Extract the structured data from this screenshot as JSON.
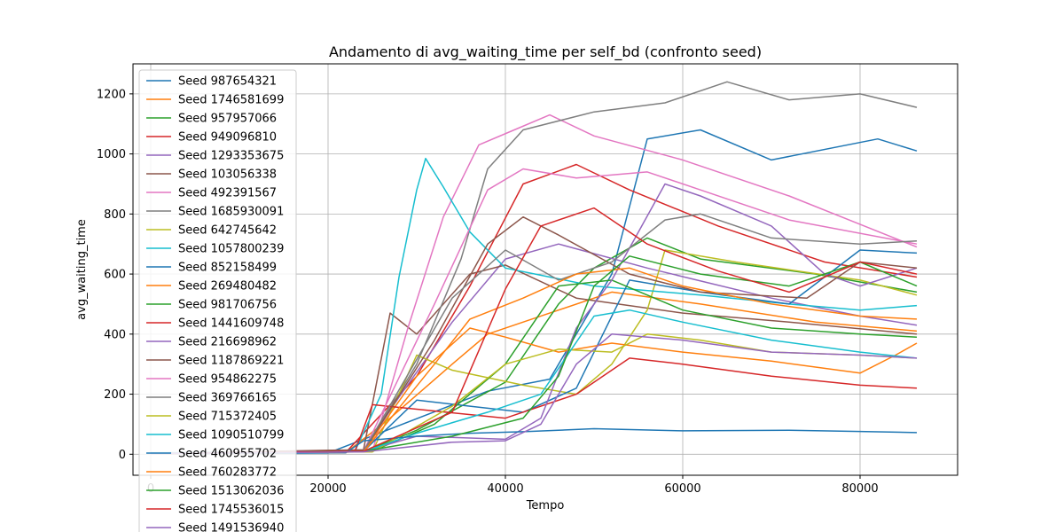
{
  "chart_data": {
    "type": "line",
    "title": "Andamento di avg_waiting_time per self_bd (confronto seed)",
    "xlabel": "Tempo",
    "ylabel": "avg_waiting_time",
    "xlim": [
      -2000,
      91000
    ],
    "ylim": [
      -70,
      1300
    ],
    "xticks": [
      0,
      20000,
      40000,
      60000,
      80000
    ],
    "yticks": [
      0,
      200,
      400,
      600,
      800,
      1000,
      1200
    ],
    "grid": true,
    "legend_position": "upper-left",
    "series": [
      {
        "name": "Seed 987654321",
        "color": "#1f77b4",
        "points": [
          [
            0,
            2
          ],
          [
            20000,
            4
          ],
          [
            38000,
            210
          ],
          [
            45000,
            250
          ],
          [
            52000,
            600
          ],
          [
            56000,
            1050
          ],
          [
            62000,
            1080
          ],
          [
            70000,
            980
          ],
          [
            82000,
            1050
          ],
          [
            86400,
            1010
          ]
        ]
      },
      {
        "name": "Seed 1746581699",
        "color": "#ff7f0e",
        "points": [
          [
            0,
            3
          ],
          [
            22000,
            5
          ],
          [
            27000,
            120
          ],
          [
            34000,
            300
          ],
          [
            38000,
            400
          ],
          [
            45000,
            470
          ],
          [
            52000,
            540
          ],
          [
            62000,
            500
          ],
          [
            75000,
            440
          ],
          [
            86400,
            410
          ]
        ]
      },
      {
        "name": "Seed 957957066",
        "color": "#2ca02c",
        "points": [
          [
            0,
            2
          ],
          [
            24000,
            8
          ],
          [
            30000,
            80
          ],
          [
            40000,
            240
          ],
          [
            46000,
            500
          ],
          [
            50000,
            620
          ],
          [
            56000,
            720
          ],
          [
            62000,
            650
          ],
          [
            75000,
            600
          ],
          [
            86400,
            540
          ]
        ]
      },
      {
        "name": "Seed 949096810",
        "color": "#d62728",
        "points": [
          [
            0,
            2
          ],
          [
            22000,
            6
          ],
          [
            30000,
            260
          ],
          [
            36000,
            560
          ],
          [
            42000,
            900
          ],
          [
            48000,
            965
          ],
          [
            54000,
            880
          ],
          [
            64000,
            760
          ],
          [
            76000,
            640
          ],
          [
            86400,
            590
          ]
        ]
      },
      {
        "name": "Seed 1293353675",
        "color": "#9467bd",
        "points": [
          [
            0,
            3
          ],
          [
            24000,
            12
          ],
          [
            28000,
            190
          ],
          [
            34000,
            440
          ],
          [
            40000,
            650
          ],
          [
            46000,
            700
          ],
          [
            56000,
            620
          ],
          [
            70000,
            520
          ],
          [
            80000,
            460
          ],
          [
            86400,
            430
          ]
        ]
      },
      {
        "name": "Seed 103056338",
        "color": "#8c564b",
        "points": [
          [
            0,
            3
          ],
          [
            24000,
            15
          ],
          [
            27000,
            470
          ],
          [
            30000,
            400
          ],
          [
            36000,
            600
          ],
          [
            40000,
            630
          ],
          [
            48000,
            520
          ],
          [
            60000,
            470
          ],
          [
            72000,
            440
          ],
          [
            86400,
            400
          ]
        ]
      },
      {
        "name": "Seed 492391567",
        "color": "#e377c2",
        "points": [
          [
            0,
            4
          ],
          [
            25000,
            10
          ],
          [
            29000,
            420
          ],
          [
            33000,
            790
          ],
          [
            37000,
            1030
          ],
          [
            41000,
            1080
          ],
          [
            45000,
            1130
          ],
          [
            50000,
            1060
          ],
          [
            60000,
            980
          ],
          [
            72000,
            860
          ],
          [
            86400,
            690
          ]
        ]
      },
      {
        "name": "Seed 1685930091",
        "color": "#7f7f7f",
        "points": [
          [
            0,
            3
          ],
          [
            24000,
            8
          ],
          [
            30000,
            300
          ],
          [
            35000,
            650
          ],
          [
            38000,
            950
          ],
          [
            42000,
            1080
          ],
          [
            50000,
            1140
          ],
          [
            58000,
            1170
          ],
          [
            65000,
            1240
          ],
          [
            72000,
            1180
          ],
          [
            80000,
            1200
          ],
          [
            86400,
            1155
          ]
        ]
      },
      {
        "name": "Seed 642745642",
        "color": "#bcbd22",
        "points": [
          [
            0,
            2
          ],
          [
            25000,
            8
          ],
          [
            30000,
            330
          ],
          [
            34000,
            280
          ],
          [
            42000,
            230
          ],
          [
            48000,
            200
          ],
          [
            52000,
            300
          ],
          [
            56000,
            480
          ],
          [
            58000,
            680
          ],
          [
            66000,
            640
          ],
          [
            80000,
            580
          ],
          [
            86400,
            530
          ]
        ]
      },
      {
        "name": "Seed 1057800239",
        "color": "#17becf",
        "points": [
          [
            0,
            5
          ],
          [
            23000,
            8
          ],
          [
            26000,
            200
          ],
          [
            28000,
            590
          ],
          [
            30000,
            880
          ],
          [
            31000,
            985
          ],
          [
            33000,
            890
          ],
          [
            36000,
            740
          ],
          [
            40000,
            620
          ],
          [
            50000,
            560
          ],
          [
            62000,
            530
          ],
          [
            72000,
            500
          ],
          [
            80000,
            480
          ],
          [
            86400,
            495
          ]
        ]
      },
      {
        "name": "Seed 852158499",
        "color": "#1f77b4",
        "points": [
          [
            0,
            2
          ],
          [
            24000,
            10
          ],
          [
            30000,
            180
          ],
          [
            36000,
            160
          ],
          [
            42000,
            140
          ],
          [
            48000,
            220
          ],
          [
            54000,
            580
          ],
          [
            62000,
            540
          ],
          [
            72000,
            500
          ],
          [
            80000,
            680
          ],
          [
            86400,
            670
          ]
        ]
      },
      {
        "name": "Seed 269480482",
        "color": "#ff7f0e",
        "points": [
          [
            0,
            2
          ],
          [
            24000,
            10
          ],
          [
            30000,
            260
          ],
          [
            36000,
            420
          ],
          [
            40000,
            390
          ],
          [
            46000,
            340
          ],
          [
            52000,
            370
          ],
          [
            60000,
            340
          ],
          [
            70000,
            310
          ],
          [
            80000,
            270
          ],
          [
            84000,
            330
          ],
          [
            86400,
            370
          ]
        ]
      },
      {
        "name": "Seed 981706756",
        "color": "#2ca02c",
        "points": [
          [
            0,
            2
          ],
          [
            25000,
            10
          ],
          [
            32000,
            100
          ],
          [
            40000,
            300
          ],
          [
            46000,
            560
          ],
          [
            52000,
            580
          ],
          [
            60000,
            480
          ],
          [
            70000,
            420
          ],
          [
            80000,
            400
          ],
          [
            86400,
            390
          ]
        ]
      },
      {
        "name": "Seed 1441609748",
        "color": "#d62728",
        "points": [
          [
            0,
            2
          ],
          [
            23000,
            8
          ],
          [
            25000,
            165
          ],
          [
            30000,
            150
          ],
          [
            40000,
            120
          ],
          [
            48000,
            200
          ],
          [
            54000,
            320
          ],
          [
            60000,
            300
          ],
          [
            70000,
            260
          ],
          [
            80000,
            230
          ],
          [
            86400,
            220
          ]
        ]
      },
      {
        "name": "Seed 216698962",
        "color": "#9467bd",
        "points": [
          [
            0,
            3
          ],
          [
            24000,
            10
          ],
          [
            30000,
            60
          ],
          [
            40000,
            50
          ],
          [
            44000,
            120
          ],
          [
            48000,
            420
          ],
          [
            52000,
            580
          ],
          [
            58000,
            900
          ],
          [
            62000,
            860
          ],
          [
            70000,
            760
          ],
          [
            76000,
            600
          ],
          [
            80000,
            560
          ],
          [
            86400,
            620
          ]
        ]
      },
      {
        "name": "Seed 1187869221",
        "color": "#8c564b",
        "points": [
          [
            0,
            2
          ],
          [
            24000,
            10
          ],
          [
            32000,
            380
          ],
          [
            38000,
            700
          ],
          [
            42000,
            790
          ],
          [
            46000,
            730
          ],
          [
            54000,
            600
          ],
          [
            62000,
            540
          ],
          [
            74000,
            520
          ],
          [
            80000,
            640
          ],
          [
            86400,
            620
          ]
        ]
      },
      {
        "name": "Seed 954862275",
        "color": "#e377c2",
        "points": [
          [
            0,
            2
          ],
          [
            24000,
            10
          ],
          [
            32000,
            500
          ],
          [
            38000,
            880
          ],
          [
            42000,
            950
          ],
          [
            48000,
            920
          ],
          [
            56000,
            940
          ],
          [
            62000,
            880
          ],
          [
            72000,
            780
          ],
          [
            86400,
            700
          ]
        ]
      },
      {
        "name": "Seed 369766165",
        "color": "#7f7f7f",
        "points": [
          [
            0,
            2
          ],
          [
            24000,
            10
          ],
          [
            34000,
            520
          ],
          [
            40000,
            680
          ],
          [
            46000,
            580
          ],
          [
            52000,
            640
          ],
          [
            58000,
            780
          ],
          [
            62000,
            800
          ],
          [
            70000,
            720
          ],
          [
            80000,
            700
          ],
          [
            86400,
            710
          ]
        ]
      },
      {
        "name": "Seed 715372405",
        "color": "#bcbd22",
        "points": [
          [
            0,
            2
          ],
          [
            25000,
            8
          ],
          [
            34000,
            160
          ],
          [
            40000,
            300
          ],
          [
            46000,
            350
          ],
          [
            52000,
            340
          ],
          [
            56000,
            400
          ],
          [
            62000,
            380
          ],
          [
            70000,
            340
          ],
          [
            80000,
            330
          ],
          [
            86400,
            320
          ]
        ]
      },
      {
        "name": "Seed 1090510799",
        "color": "#17becf",
        "points": [
          [
            0,
            3
          ],
          [
            24000,
            8
          ],
          [
            30000,
            70
          ],
          [
            38000,
            140
          ],
          [
            44000,
            200
          ],
          [
            50000,
            460
          ],
          [
            54000,
            480
          ],
          [
            60000,
            440
          ],
          [
            70000,
            380
          ],
          [
            80000,
            340
          ],
          [
            86400,
            320
          ]
        ]
      },
      {
        "name": "Seed 460955702",
        "color": "#1f77b4",
        "points": [
          [
            0,
            2
          ],
          [
            22000,
            5
          ],
          [
            24000,
            45
          ],
          [
            30000,
            60
          ],
          [
            36000,
            70
          ],
          [
            42000,
            75
          ],
          [
            50000,
            85
          ],
          [
            60000,
            78
          ],
          [
            72000,
            80
          ],
          [
            80000,
            76
          ],
          [
            86400,
            72
          ]
        ]
      },
      {
        "name": "Seed 760283772",
        "color": "#ff7f0e",
        "points": [
          [
            0,
            2
          ],
          [
            24000,
            8
          ],
          [
            32000,
            300
          ],
          [
            36000,
            450
          ],
          [
            42000,
            520
          ],
          [
            48000,
            600
          ],
          [
            54000,
            620
          ],
          [
            60000,
            560
          ],
          [
            70000,
            500
          ],
          [
            80000,
            460
          ],
          [
            86400,
            450
          ]
        ]
      },
      {
        "name": "Seed 1513062036",
        "color": "#2ca02c",
        "points": [
          [
            0,
            2
          ],
          [
            24000,
            10
          ],
          [
            34000,
            60
          ],
          [
            42000,
            120
          ],
          [
            46000,
            260
          ],
          [
            50000,
            560
          ],
          [
            54000,
            660
          ],
          [
            62000,
            600
          ],
          [
            72000,
            560
          ],
          [
            80000,
            640
          ],
          [
            86400,
            560
          ]
        ]
      },
      {
        "name": "Seed 1745536015",
        "color": "#d62728",
        "points": [
          [
            0,
            2
          ],
          [
            24000,
            10
          ],
          [
            34000,
            140
          ],
          [
            40000,
            550
          ],
          [
            44000,
            760
          ],
          [
            50000,
            820
          ],
          [
            56000,
            700
          ],
          [
            64000,
            610
          ],
          [
            72000,
            540
          ],
          [
            80000,
            640
          ],
          [
            86400,
            600
          ]
        ]
      },
      {
        "name": "Seed 1491536940",
        "color": "#9467bd",
        "points": [
          [
            0,
            2
          ],
          [
            24000,
            8
          ],
          [
            34000,
            40
          ],
          [
            40000,
            45
          ],
          [
            44000,
            100
          ],
          [
            48000,
            300
          ],
          [
            52000,
            400
          ],
          [
            60000,
            380
          ],
          [
            70000,
            340
          ],
          [
            80000,
            330
          ],
          [
            86400,
            320
          ]
        ]
      }
    ]
  }
}
